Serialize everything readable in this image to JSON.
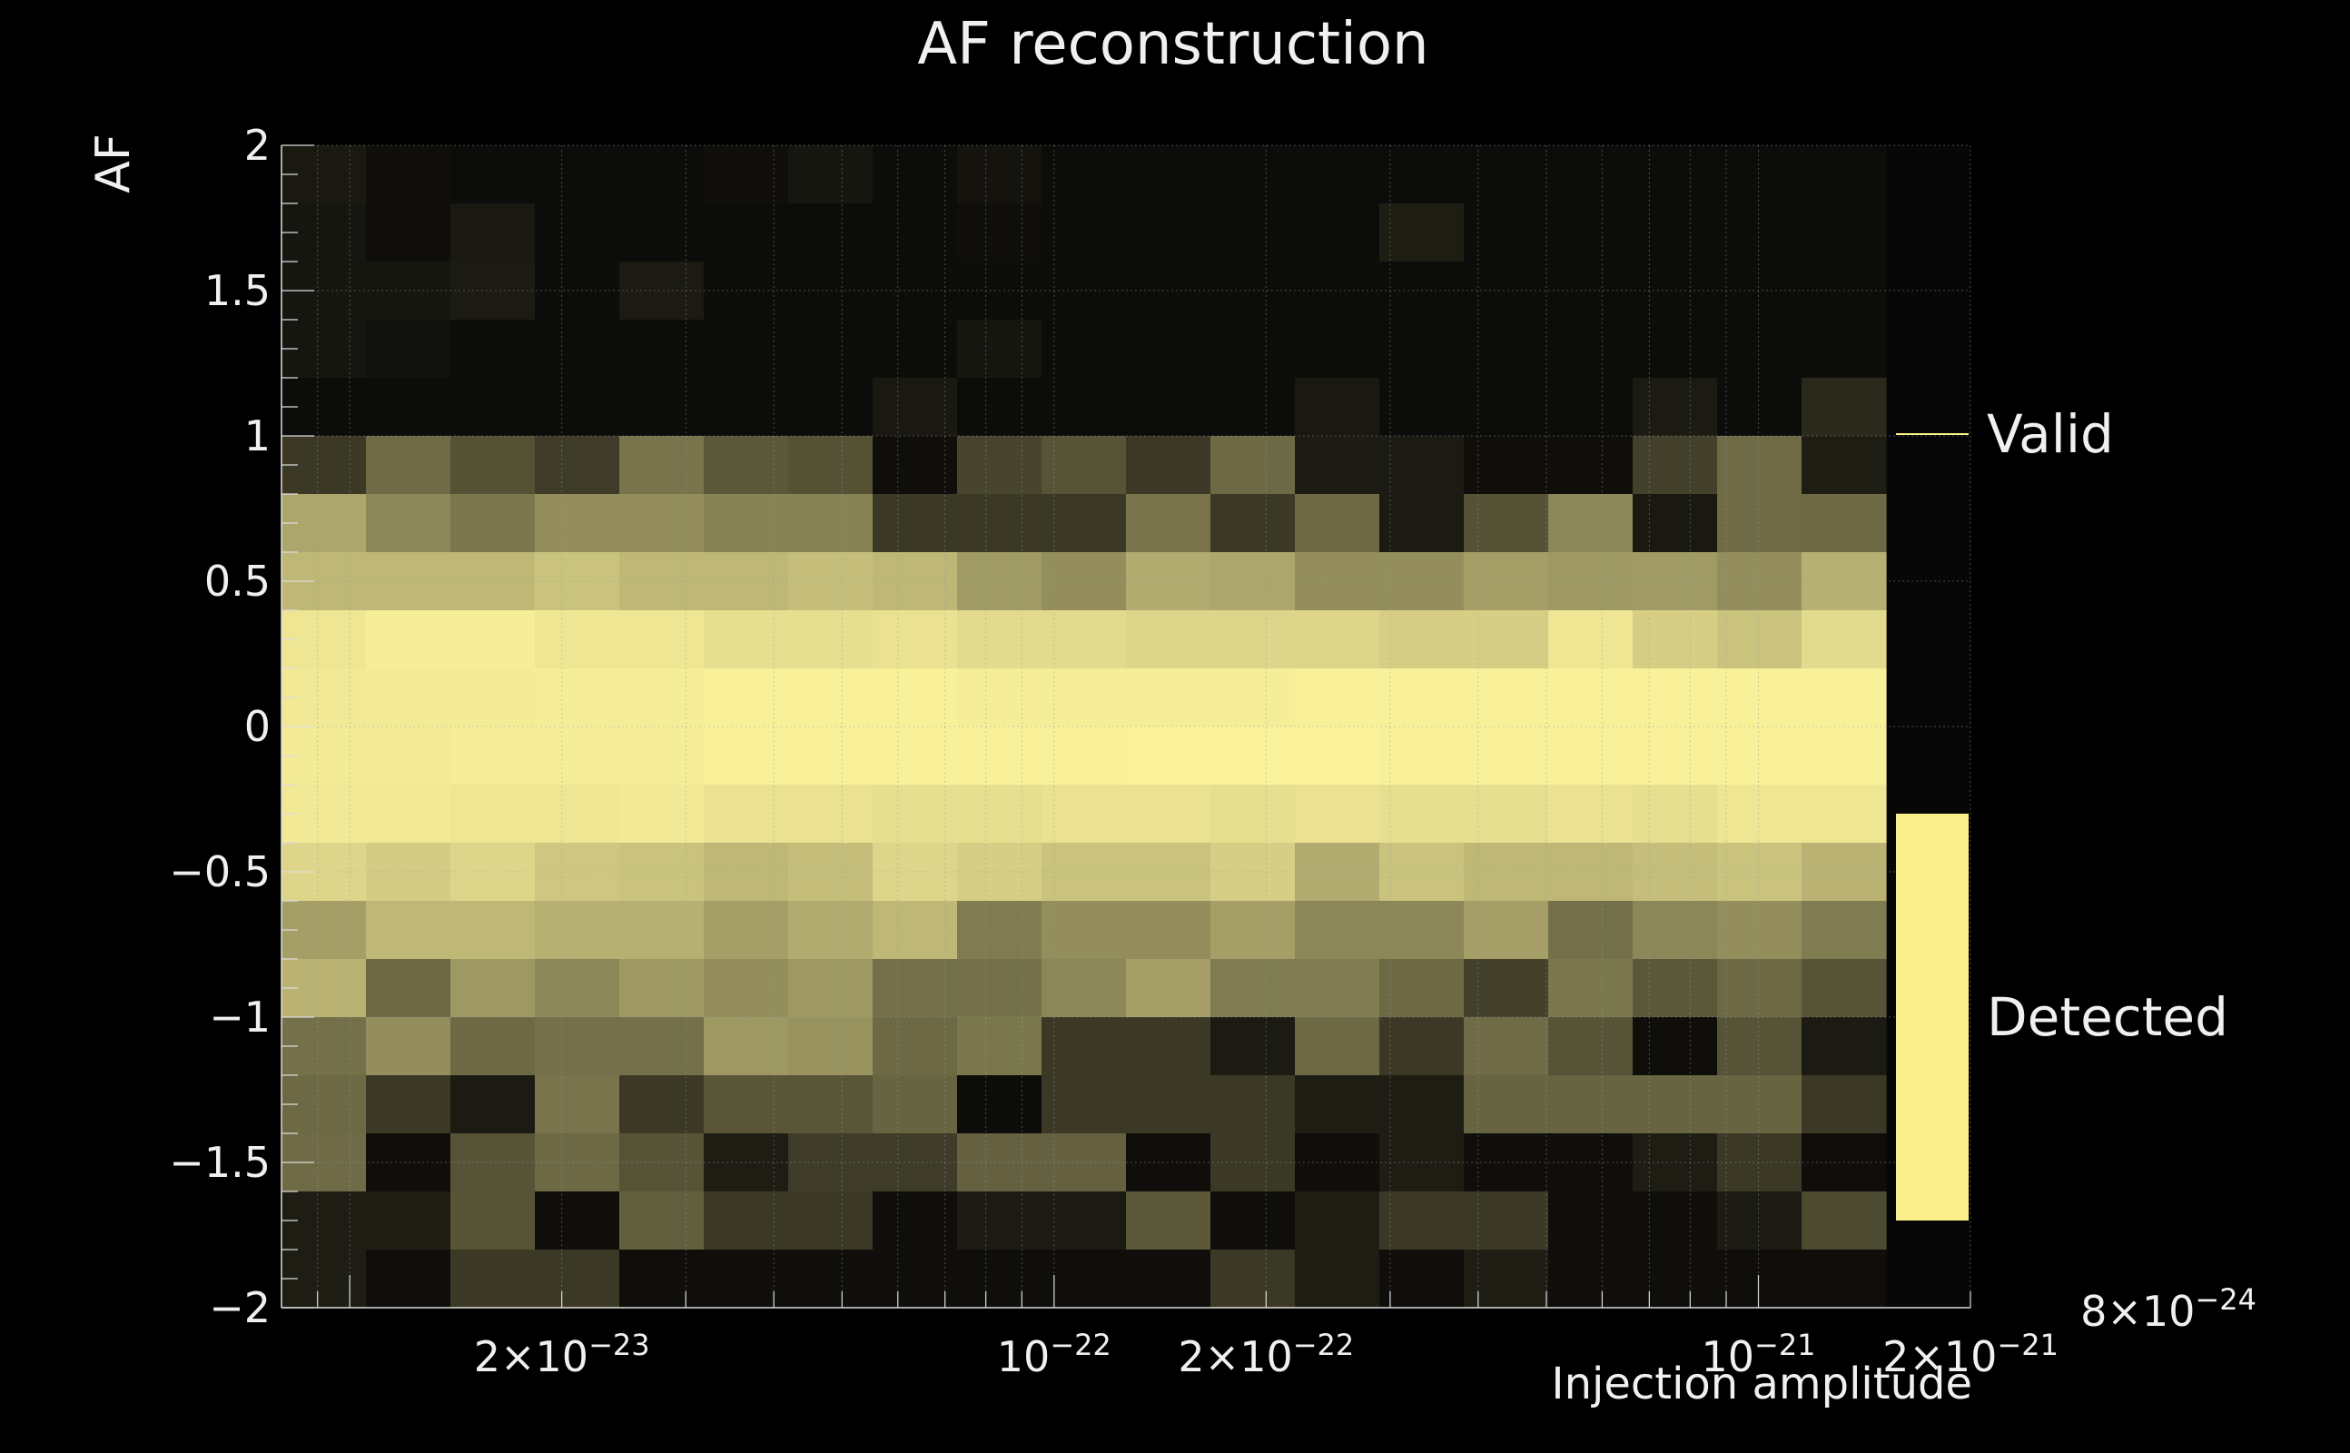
{
  "chart_data": {
    "type": "heatmap",
    "title": "AF reconstruction",
    "xlabel": "Injection amplitude",
    "ylabel": "AF",
    "xscale": "log",
    "xlim": [
      8e-24,
      2e-21
    ],
    "ylim": [
      -2,
      2
    ],
    "grid": true,
    "x_tick_labels": [
      {
        "value": 2e-23,
        "mant": "2×10",
        "exp": "−23"
      },
      {
        "value": 1e-22,
        "mant": "10",
        "exp": "−22"
      },
      {
        "value": 2e-22,
        "mant": "2×10",
        "exp": "−22"
      },
      {
        "value": 1e-21,
        "mant": "10",
        "exp": "−21"
      },
      {
        "value": 2e-21,
        "mant": "2×10",
        "exp": "−21"
      }
    ],
    "x_extra_label": {
      "mant": "8×10",
      "exp": "−24"
    },
    "y_ticks": [
      2,
      1.5,
      1,
      0.5,
      0,
      -0.5,
      -1,
      -1.5,
      -2
    ],
    "y_tick_labels": [
      "2",
      "1.5",
      "1",
      "0.5",
      "0",
      "−0.5",
      "−1",
      "−1.5",
      "−2"
    ],
    "legend": {
      "placement": "right",
      "entries": [
        {
          "label": "Valid",
          "style": "line",
          "color": "#f8f08a"
        },
        {
          "label": "Detected",
          "style": "fill",
          "color": "#faf08c"
        }
      ]
    },
    "colors": {
      "high": "#fbf29c",
      "low": "#050505",
      "background": "#070707"
    },
    "y_bins_top_to_bottom": [
      1.9,
      1.7,
      1.5,
      1.3,
      1.1,
      0.9,
      0.7,
      0.5,
      0.3,
      0.1,
      -0.1,
      -0.3,
      -0.5,
      -0.7,
      -0.9,
      -1.1,
      -1.3,
      -1.5,
      -1.7,
      -1.9
    ],
    "x_bins_count": 19,
    "z": [
      [
        8,
        4,
        3,
        3,
        3,
        4,
        7,
        3,
        6,
        3,
        3,
        3,
        3,
        3,
        3,
        3,
        3,
        3,
        3
      ],
      [
        7,
        4,
        8,
        3,
        3,
        3,
        3,
        3,
        4,
        3,
        3,
        3,
        3,
        10,
        3,
        3,
        3,
        3,
        3
      ],
      [
        7,
        7,
        9,
        3,
        9,
        3,
        3,
        3,
        3,
        3,
        3,
        3,
        3,
        3,
        3,
        3,
        3,
        3,
        3
      ],
      [
        7,
        5,
        3,
        3,
        3,
        3,
        3,
        3,
        7,
        3,
        3,
        3,
        3,
        3,
        3,
        3,
        3,
        3,
        3
      ],
      [
        3,
        3,
        3,
        3,
        3,
        3,
        3,
        8,
        3,
        3,
        3,
        3,
        8,
        3,
        3,
        3,
        9,
        3,
        15
      ],
      [
        22,
        43,
        32,
        23,
        47,
        35,
        32,
        4,
        27,
        33,
        22,
        42,
        9,
        9,
        4,
        4,
        25,
        43,
        10
      ],
      [
        68,
        55,
        48,
        58,
        58,
        53,
        53,
        22,
        22,
        22,
        47,
        22,
        42,
        9,
        32,
        55,
        8,
        43,
        42
      ],
      [
        75,
        75,
        75,
        80,
        75,
        75,
        78,
        75,
        63,
        58,
        70,
        68,
        58,
        58,
        65,
        62,
        63,
        58,
        72
      ],
      [
        95,
        98,
        98,
        95,
        95,
        92,
        92,
        93,
        90,
        90,
        88,
        88,
        88,
        85,
        85,
        95,
        85,
        80,
        90
      ],
      [
        96,
        97,
        97,
        98,
        98,
        99,
        99,
        99,
        98,
        98,
        98,
        98,
        99,
        99,
        99,
        99,
        99,
        99,
        99
      ],
      [
        97,
        97,
        98,
        98,
        98,
        99,
        99,
        99,
        99,
        99,
        100,
        100,
        100,
        99,
        99,
        99,
        99,
        99,
        99
      ],
      [
        96,
        96,
        95,
        95,
        96,
        93,
        93,
        92,
        92,
        93,
        93,
        92,
        93,
        92,
        92,
        93,
        92,
        95,
        95
      ],
      [
        88,
        84,
        88,
        82,
        80,
        75,
        78,
        88,
        85,
        80,
        80,
        85,
        70,
        80,
        75,
        75,
        78,
        80,
        73
      ],
      [
        65,
        75,
        75,
        72,
        72,
        65,
        70,
        75,
        50,
        58,
        58,
        65,
        55,
        55,
        65,
        45,
        55,
        58,
        50
      ],
      [
        73,
        42,
        62,
        55,
        62,
        58,
        62,
        45,
        45,
        55,
        65,
        50,
        50,
        42,
        25,
        48,
        35,
        42,
        33
      ],
      [
        45,
        58,
        42,
        45,
        45,
        62,
        60,
        42,
        48,
        22,
        22,
        9,
        42,
        22,
        43,
        33,
        4,
        33,
        9
      ],
      [
        42,
        22,
        9,
        47,
        22,
        34,
        34,
        40,
        3,
        22,
        22,
        22,
        10,
        10,
        40,
        40,
        40,
        40,
        22
      ],
      [
        43,
        4,
        33,
        42,
        33,
        10,
        23,
        23,
        39,
        39,
        4,
        22,
        4,
        10,
        4,
        4,
        10,
        22,
        4
      ],
      [
        10,
        10,
        33,
        4,
        38,
        22,
        22,
        4,
        9,
        9,
        35,
        4,
        10,
        22,
        22,
        4,
        4,
        9,
        29
      ],
      [
        10,
        4,
        22,
        22,
        4,
        4,
        4,
        4,
        4,
        4,
        4,
        22,
        10,
        4,
        10,
        4,
        4,
        4,
        4
      ]
    ]
  }
}
